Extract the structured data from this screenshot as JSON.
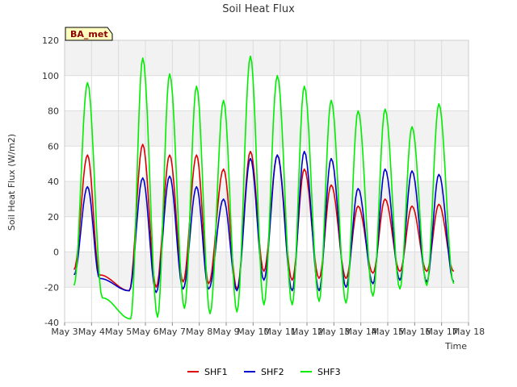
{
  "chart_data": {
    "type": "line",
    "title": "Soil Heat Flux",
    "xlabel": "Time",
    "ylabel": "Soil Heat Flux (W/m2)",
    "ylim": [
      -40,
      120
    ],
    "yticks": [
      -40,
      -20,
      0,
      20,
      40,
      60,
      80,
      100,
      120
    ],
    "xlim": [
      0,
      15
    ],
    "xticks": [
      0,
      1,
      2,
      3,
      4,
      5,
      6,
      7,
      8,
      9,
      10,
      11,
      12,
      13,
      14,
      15
    ],
    "xtick_labels": [
      "May 3",
      "May 4",
      "May 5",
      "May 6",
      "May 7",
      "May 8",
      "May 9",
      "May 10",
      "May 11",
      "May 12",
      "May 13",
      "May 14",
      "May 15",
      "May 16",
      "May 17",
      "May 18"
    ],
    "badge": "BA_met",
    "grid": true,
    "shaded_bands": true,
    "legend_position": "bottom-center",
    "series": [
      {
        "name": "SHF1",
        "color": "#dd0000",
        "start": 0.35,
        "end": 14.45,
        "peaks": [
          [
            0.85,
            55
          ],
          [
            2.9,
            61
          ],
          [
            3.9,
            55
          ],
          [
            4.9,
            55
          ],
          [
            5.9,
            47
          ],
          [
            6.9,
            57
          ],
          [
            7.9,
            55
          ],
          [
            8.9,
            47
          ],
          [
            9.9,
            38
          ],
          [
            10.9,
            26
          ],
          [
            11.9,
            30
          ],
          [
            12.9,
            26
          ],
          [
            13.9,
            27
          ]
        ],
        "troughs": [
          [
            0.35,
            -10
          ],
          [
            1.3,
            -13
          ],
          [
            2.4,
            -22
          ],
          [
            3.4,
            -20
          ],
          [
            4.4,
            -17
          ],
          [
            5.35,
            -18
          ],
          [
            6.4,
            -21
          ],
          [
            7.4,
            -11
          ],
          [
            8.45,
            -16
          ],
          [
            9.45,
            -15
          ],
          [
            10.45,
            -15
          ],
          [
            11.45,
            -12
          ],
          [
            12.45,
            -11
          ],
          [
            13.45,
            -11
          ],
          [
            14.45,
            -11
          ]
        ]
      },
      {
        "name": "SHF2",
        "color": "#0000cc",
        "start": 0.35,
        "end": 14.45,
        "peaks": [
          [
            0.85,
            37
          ],
          [
            2.9,
            42
          ],
          [
            3.9,
            43
          ],
          [
            4.9,
            37
          ],
          [
            5.9,
            30
          ],
          [
            6.9,
            53
          ],
          [
            7.9,
            55
          ],
          [
            8.9,
            57
          ],
          [
            9.9,
            53
          ],
          [
            10.9,
            36
          ],
          [
            11.9,
            47
          ],
          [
            12.9,
            46
          ],
          [
            13.9,
            44
          ]
        ],
        "troughs": [
          [
            0.35,
            -13
          ],
          [
            1.3,
            -15
          ],
          [
            2.4,
            -22
          ],
          [
            3.4,
            -23
          ],
          [
            4.4,
            -21
          ],
          [
            5.35,
            -21
          ],
          [
            6.4,
            -22
          ],
          [
            7.4,
            -16
          ],
          [
            8.45,
            -22
          ],
          [
            9.45,
            -22
          ],
          [
            10.45,
            -20
          ],
          [
            11.45,
            -18
          ],
          [
            12.45,
            -16
          ],
          [
            13.45,
            -17
          ],
          [
            14.45,
            -17
          ]
        ]
      },
      {
        "name": "SHF3",
        "color": "#00ee00",
        "start": 0.35,
        "end": 14.45,
        "peaks": [
          [
            0.85,
            96
          ],
          [
            2.9,
            110
          ],
          [
            3.9,
            101
          ],
          [
            4.9,
            94
          ],
          [
            5.9,
            86
          ],
          [
            6.9,
            111
          ],
          [
            7.9,
            100
          ],
          [
            8.9,
            94
          ],
          [
            9.9,
            86
          ],
          [
            10.9,
            80
          ],
          [
            11.9,
            81
          ],
          [
            12.9,
            71
          ],
          [
            13.9,
            84
          ]
        ],
        "troughs": [
          [
            0.35,
            -19
          ],
          [
            1.4,
            -26
          ],
          [
            2.45,
            -38
          ],
          [
            3.45,
            -37
          ],
          [
            4.45,
            -32
          ],
          [
            5.4,
            -35
          ],
          [
            6.4,
            -34
          ],
          [
            7.4,
            -30
          ],
          [
            8.45,
            -30
          ],
          [
            9.45,
            -28
          ],
          [
            10.45,
            -29
          ],
          [
            11.45,
            -25
          ],
          [
            12.45,
            -21
          ],
          [
            13.45,
            -19
          ],
          [
            14.45,
            -18
          ]
        ]
      }
    ]
  }
}
